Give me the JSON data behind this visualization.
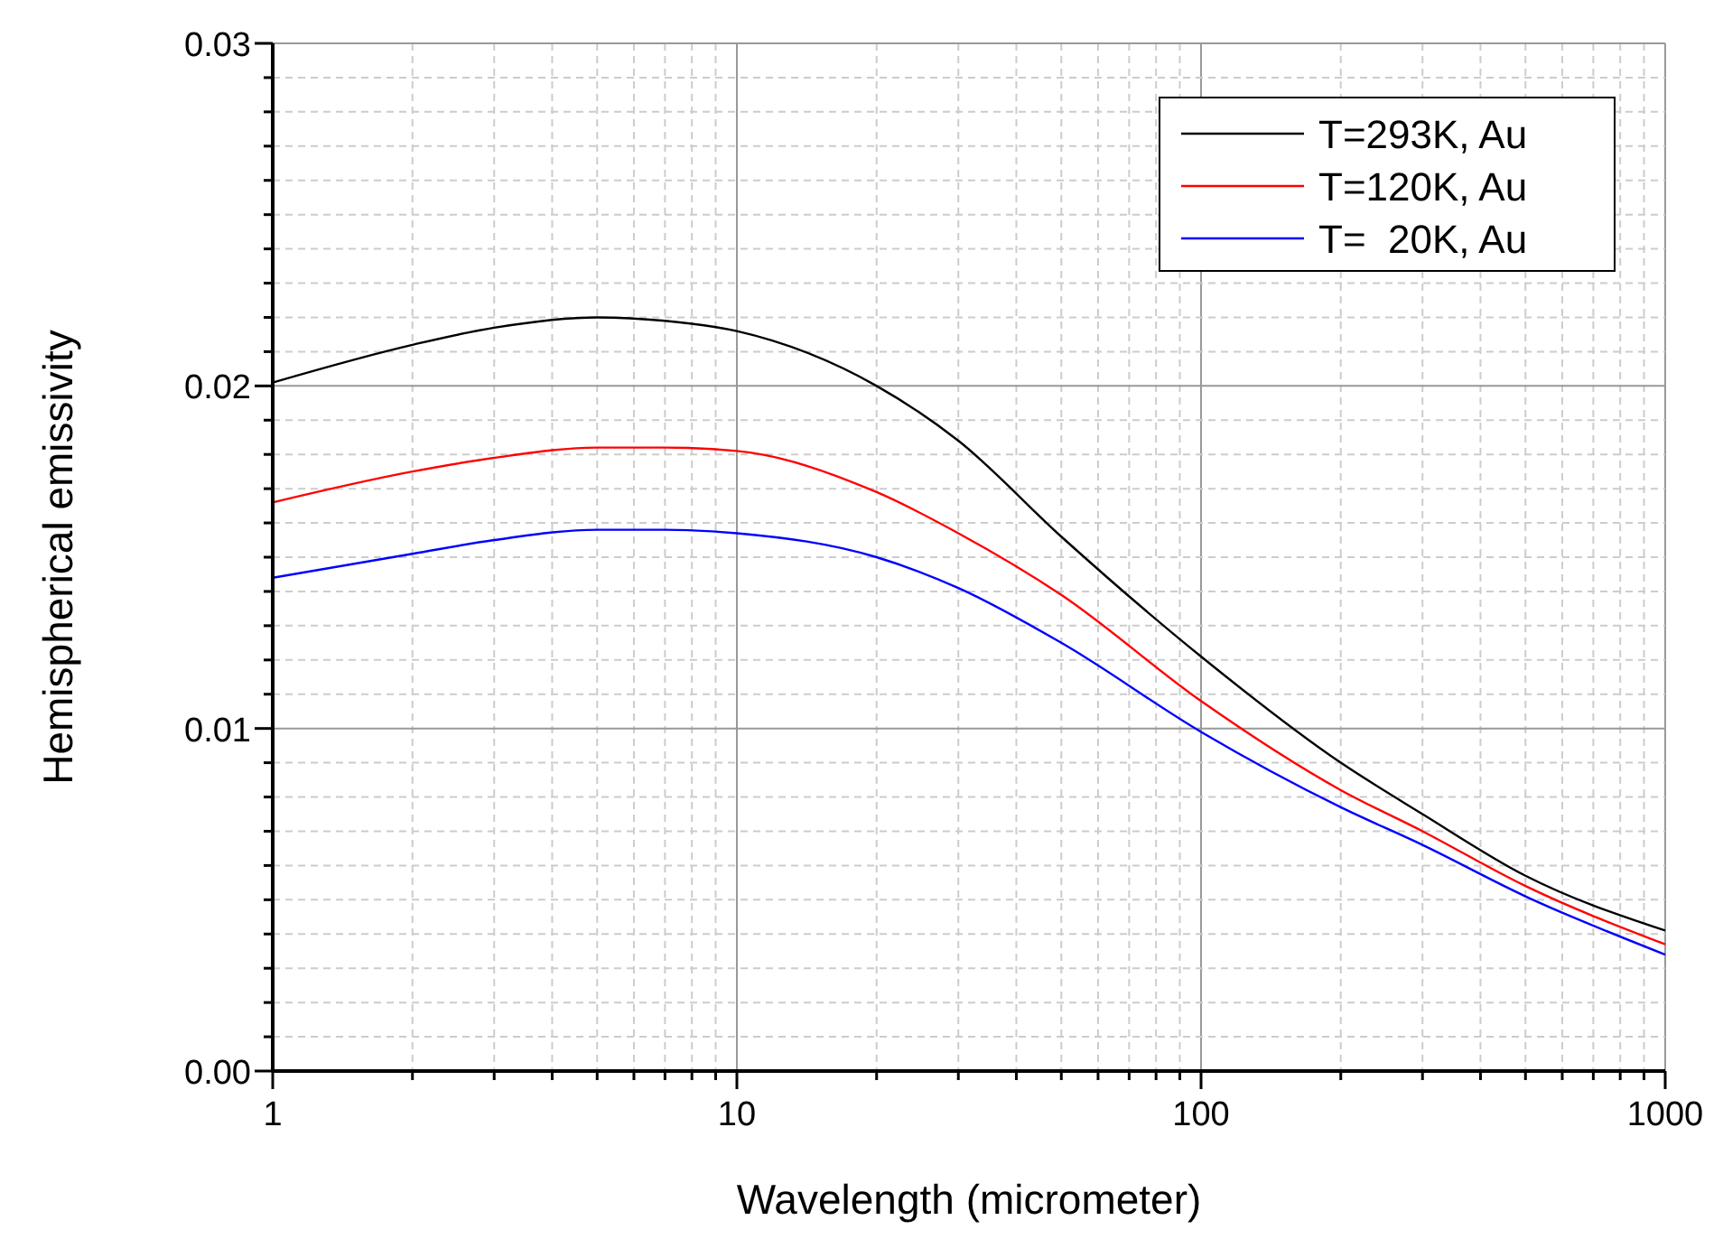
{
  "chart_data": {
    "type": "line",
    "xlabel": "Wavelength (micrometer)",
    "ylabel": "Hemispherical emissivity",
    "log": "x",
    "grid": true,
    "legend": "top right",
    "line_style": "solid",
    "marker": "none",
    "xlim": [
      1,
      1000
    ],
    "ylim": [
      0,
      0.03
    ],
    "xticks": [
      1,
      {
        "value": 2,
        "label": null
      },
      {
        "value": 3,
        "label": null
      },
      {
        "value": 4,
        "label": null
      },
      {
        "value": 5,
        "label": null
      },
      {
        "value": 6,
        "label": null
      },
      {
        "value": 7,
        "label": null
      },
      {
        "value": 8,
        "label": null
      },
      {
        "value": 9,
        "label": null
      },
      10,
      {
        "value": 20,
        "label": null
      },
      {
        "value": 30,
        "label": null
      },
      {
        "value": 40,
        "label": null
      },
      {
        "value": 50,
        "label": null
      },
      {
        "value": 60,
        "label": null
      },
      {
        "value": 70,
        "label": null
      },
      {
        "value": 80,
        "label": null
      },
      {
        "value": 90,
        "label": null
      },
      100,
      {
        "value": 200,
        "label": null
      },
      {
        "value": 300,
        "label": null
      },
      {
        "value": 400,
        "label": null
      },
      {
        "value": 500,
        "label": null
      },
      {
        "value": 600,
        "label": null
      },
      {
        "value": 700,
        "label": null
      },
      {
        "value": 800,
        "label": null
      },
      {
        "value": 900,
        "label": null
      },
      1000
    ],
    "yticks": [
      {
        "value": 0,
        "label": "0.00"
      },
      {
        "value": 0.001,
        "label": null
      },
      {
        "value": 0.002,
        "label": null
      },
      {
        "value": 0.003,
        "label": null
      },
      {
        "value": 0.004,
        "label": null
      },
      {
        "value": 0.005,
        "label": null
      },
      {
        "value": 0.006,
        "label": null
      },
      {
        "value": 0.007,
        "label": null
      },
      {
        "value": 0.008,
        "label": null
      },
      {
        "value": 0.009,
        "label": null
      },
      0.01,
      {
        "value": 0.011,
        "label": null
      },
      {
        "value": 0.012,
        "label": null
      },
      {
        "value": 0.013,
        "label": null
      },
      {
        "value": 0.014,
        "label": null
      },
      {
        "value": 0.015,
        "label": null
      },
      {
        "value": 0.016,
        "label": null
      },
      {
        "value": 0.017,
        "label": null
      },
      {
        "value": 0.018,
        "label": null
      },
      {
        "value": 0.019,
        "label": null
      },
      0.02,
      {
        "value": 0.021,
        "label": null
      },
      {
        "value": 0.022,
        "label": null
      },
      {
        "value": 0.023,
        "label": null
      },
      {
        "value": 0.024,
        "label": null
      },
      {
        "value": 0.025,
        "label": null
      },
      {
        "value": 0.026,
        "label": null
      },
      {
        "value": 0.027,
        "label": null
      },
      {
        "value": 0.028,
        "label": null
      },
      {
        "value": 0.029,
        "label": null
      },
      0.03
    ],
    "x": [
      1,
      2,
      3,
      5,
      7,
      10,
      20,
      30,
      50,
      100,
      200,
      300,
      500,
      1000
    ],
    "series": [
      {
        "name": "T=293K, Au",
        "color": "#000000",
        "values": [
          0.0201,
          0.0212,
          0.0217,
          0.022,
          0.0219,
          0.0216,
          0.02,
          0.0184,
          0.0156,
          0.0121,
          0.009,
          0.0075,
          0.0057,
          0.0041
        ]
      },
      {
        "name": "T=120K, Au",
        "color": "#ff0000",
        "values": [
          0.0166,
          0.0175,
          0.0179,
          0.0182,
          0.0182,
          0.0181,
          0.0169,
          0.0157,
          0.0139,
          0.0108,
          0.0082,
          0.007,
          0.0054,
          0.0037
        ]
      },
      {
        "name": "T=  20K, Au",
        "color": "#0000ff",
        "values": [
          0.0144,
          0.0151,
          0.0155,
          0.0158,
          0.0158,
          0.0157,
          0.015,
          0.0141,
          0.0125,
          0.0099,
          0.0077,
          0.0066,
          0.0051,
          0.0034
        ]
      }
    ]
  }
}
